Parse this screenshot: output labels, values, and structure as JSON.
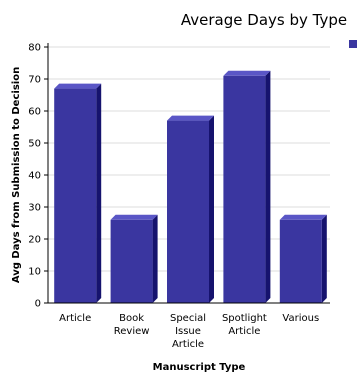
{
  "chart_data": {
    "type": "bar",
    "title": "Average Days by Type",
    "xlabel": "Manuscript Type",
    "ylabel": "Avg Days from Submission to Decision",
    "categories": [
      [
        "Article"
      ],
      [
        "Book",
        "Review"
      ],
      [
        "Special",
        "Issue",
        "Article"
      ],
      [
        "Spotlight",
        "Article"
      ],
      [
        "Various"
      ]
    ],
    "values": [
      67,
      26,
      57,
      71,
      26
    ],
    "ylim": [
      0,
      80
    ],
    "yticks": [
      0,
      10,
      20,
      30,
      40,
      50,
      60,
      70,
      80
    ],
    "grid": true,
    "legend": "top-right",
    "colors": {
      "bar_front": "#3a36a0",
      "bar_top": "#5a56c6",
      "bar_side": "#16136e",
      "legend_swatch": "#3a36a0",
      "grid": "#dddddd",
      "axis": "#000000"
    }
  }
}
